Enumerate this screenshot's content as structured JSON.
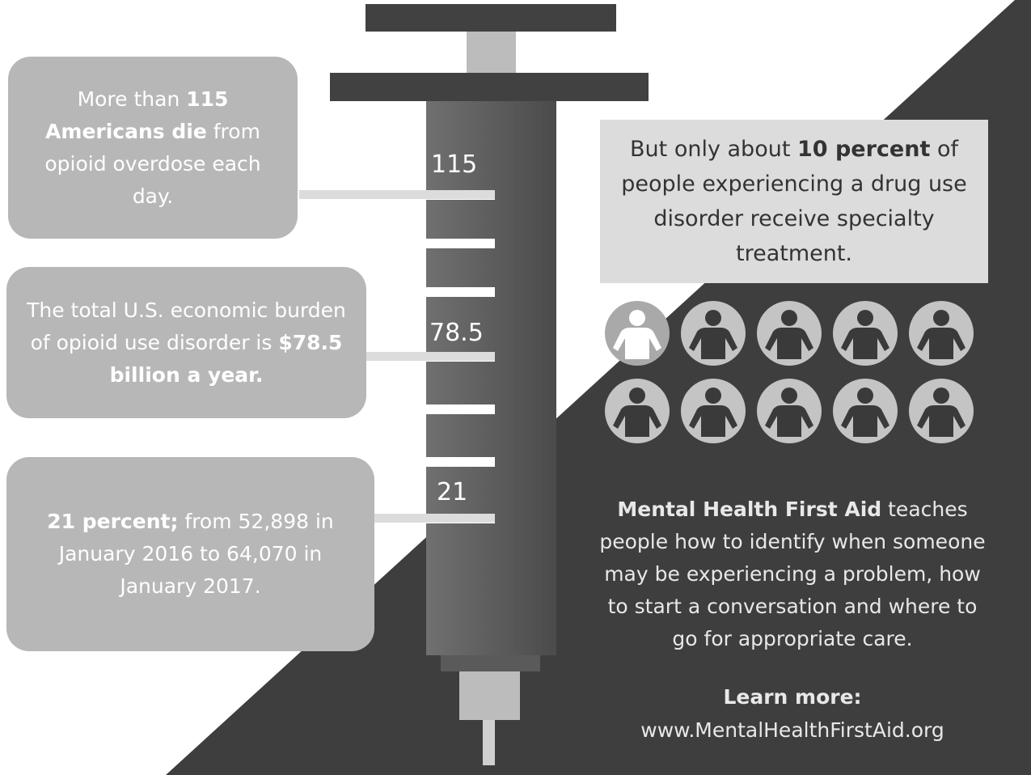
{
  "left_boxes": [
    {
      "runs": [
        {
          "text": "More than "
        },
        {
          "text": "115 Americans die",
          "bold": true
        },
        {
          "text": " from opioid overdose each day."
        }
      ]
    },
    {
      "runs": [
        {
          "text": "The total U.S. economic burden of opioid use disorder is "
        },
        {
          "text": "$78.5 billion a year.",
          "bold": true
        }
      ]
    },
    {
      "runs": [
        {
          "text": "21 percent;",
          "bold": true
        },
        {
          "text": " from 52,898 in January 2016 to 64,070 in January 2017."
        }
      ]
    }
  ],
  "syringe_labels": [
    115,
    78.5,
    21
  ],
  "right_box": {
    "runs": [
      {
        "text": "But only about "
      },
      {
        "text": "10 percent",
        "bold": true
      },
      {
        "text": " of people experiencing a drug use disorder receive specialty treatment."
      }
    ]
  },
  "description": {
    "runs": [
      {
        "text": "Mental Health First Aid",
        "bold": true
      },
      {
        "text": " teaches people how to identify when someone may be experiencing a problem, how to start a conversation and where to go for appropriate care."
      }
    ]
  },
  "learn_more": {
    "label": "Learn more:",
    "url": "www.MentalHealthFirstAid.org"
  }
}
